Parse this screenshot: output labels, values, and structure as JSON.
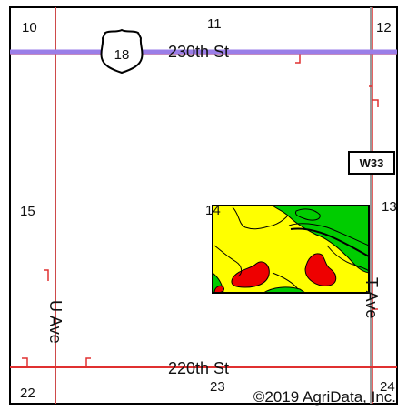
{
  "map": {
    "section_numbers": {
      "s10": "10",
      "s11": "11",
      "s12": "12",
      "s15": "15",
      "s14": "14",
      "s13": "13",
      "s22": "22",
      "s23": "23",
      "s24": "24"
    },
    "roads": {
      "hwy_shield": "18",
      "north_road": "230th St",
      "south_road": "220th St",
      "west_road": "U Ave",
      "east_road": "T Ave",
      "county_route": "W33"
    },
    "copyright": "©2019 AgriData, Inc.",
    "soil_zones": [
      {
        "zone": "high",
        "color": "#00cc00"
      },
      {
        "zone": "medium",
        "color": "#ffff00"
      },
      {
        "zone": "low",
        "color": "#ee0000"
      }
    ],
    "colors": {
      "highway": "#9a7ee8",
      "road": "#e03030",
      "section_line": "#999999",
      "boundary": "#000000"
    }
  }
}
